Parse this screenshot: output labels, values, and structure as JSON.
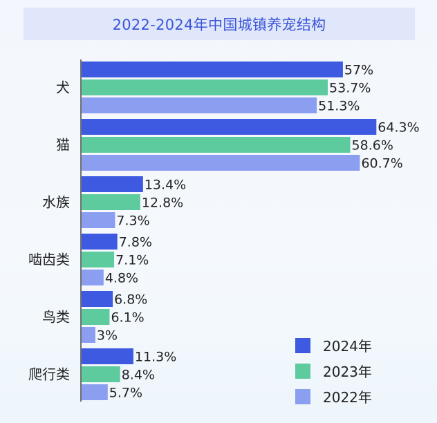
{
  "title": "2022-2024年中国城镇养宠结构",
  "chart_data": {
    "type": "bar",
    "orientation": "horizontal",
    "title": "2022-2024年中国城镇养宠结构",
    "categories": [
      "犬",
      "猫",
      "水族",
      "啮齿类",
      "鸟类",
      "爬行类"
    ],
    "series": [
      {
        "name": "2024年",
        "color": "#3d5ae0",
        "values": [
          57,
          64.3,
          13.4,
          7.8,
          6.8,
          11.3
        ],
        "labels": [
          "57%",
          "64.3%",
          "13.4%",
          "7.8%",
          "6.8%",
          "11.3%"
        ]
      },
      {
        "name": "2023年",
        "color": "#5ecb9f",
        "values": [
          53.7,
          58.6,
          12.8,
          7.1,
          6.1,
          8.4
        ],
        "labels": [
          "53.7%",
          "58.6%",
          "12.8%",
          "7.1%",
          "6.1%",
          "8.4%"
        ]
      },
      {
        "name": "2022年",
        "color": "#8b9ef0",
        "values": [
          51.3,
          60.7,
          7.3,
          4.8,
          3,
          5.7
        ],
        "labels": [
          "51.3%",
          "60.7%",
          "7.3%",
          "4.8%",
          "3%",
          "5.7%"
        ]
      }
    ],
    "xlim": [
      0,
      100
    ],
    "grid": false,
    "legend_position": "bottom-right"
  }
}
